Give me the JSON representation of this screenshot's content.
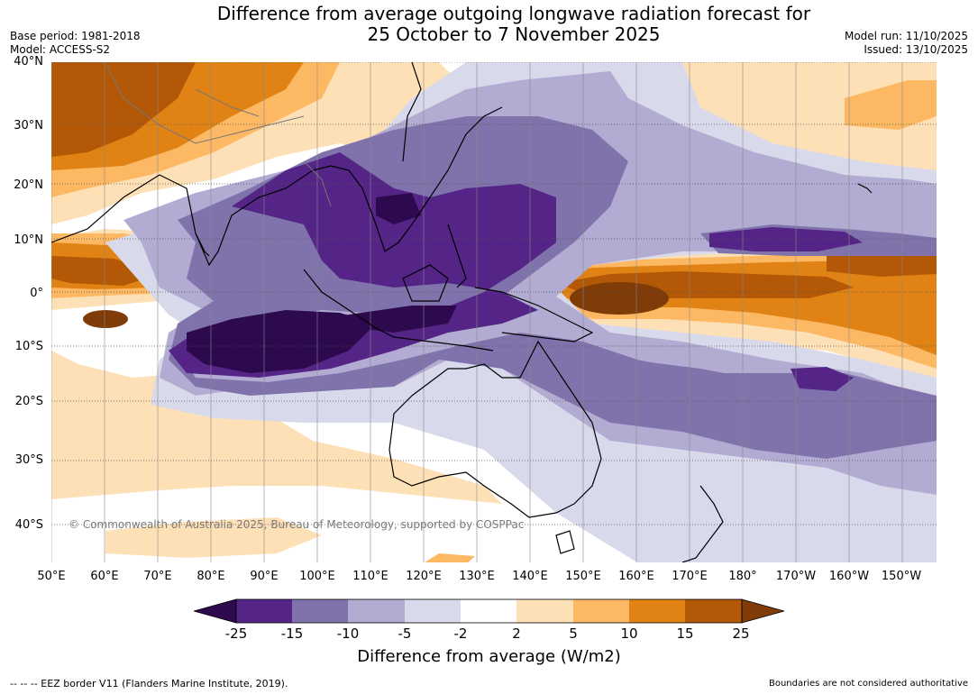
{
  "title": {
    "line1": "Difference from average outgoing longwave radiation forecast for",
    "line2": "25 October to 7 November 2025"
  },
  "meta": {
    "base_period": "Base period: 1981-2018",
    "model": "Model: ACCESS-S2",
    "model_run": "Model run: 11/10/2025",
    "issued": "Issued: 13/10/2025"
  },
  "map": {
    "lat_labels": [
      "40°N",
      "30°N",
      "20°N",
      "10°N",
      "0°",
      "10°S",
      "20°S",
      "30°S",
      "40°S"
    ],
    "lon_labels": [
      "50°E",
      "60°E",
      "70°E",
      "80°E",
      "90°E",
      "100°E",
      "110°E",
      "120°E",
      "130°E",
      "140°E",
      "150°E",
      "160°E",
      "170°E",
      "180°",
      "170°W",
      "160°W",
      "150°W"
    ],
    "copyright": "© Commonwealth of Australia 2025, Bureau of Meteorology, supported by COSPPac"
  },
  "legend": {
    "ticks": [
      "-25",
      "-15",
      "-10",
      "-5",
      "-2",
      "2",
      "5",
      "10",
      "15",
      "25"
    ],
    "colors": [
      "#2d0a4e",
      "#542487",
      "#8073ac",
      "#b2abd2",
      "#d8daeb",
      "#ffffff",
      "#fee0b6",
      "#fdb863",
      "#e08214",
      "#b35806",
      "#7f3b08"
    ],
    "title": "Difference from average (W/m2)"
  },
  "footer": {
    "eez": "-- -- -- EEZ border V11 (Flanders Marine Institute, 2019).",
    "disclaimer": "Boundaries are not considered authoritative"
  }
}
